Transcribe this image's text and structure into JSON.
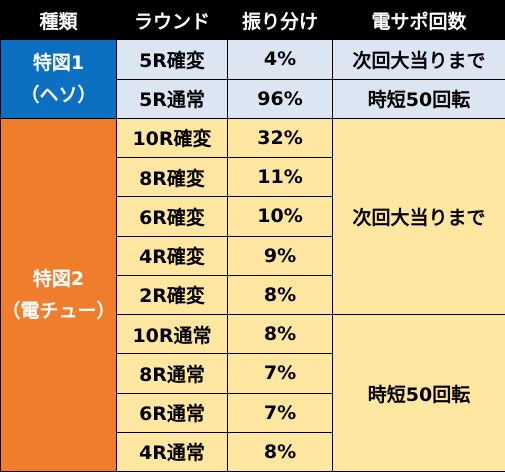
{
  "header": {
    "col1": "種類",
    "col2": "ラウンド",
    "col3": "振り分け",
    "col4": "電サポ回数"
  },
  "toku1": {
    "label_line1": "特図1",
    "label_line2": "（ヘソ）",
    "rows": [
      {
        "round": "5R確変",
        "ratio": "4%",
        "support": "次回大当りまで"
      },
      {
        "round": "5R通常",
        "ratio": "96%",
        "support": "時短50回転"
      }
    ]
  },
  "toku2": {
    "label_line1": "特図2",
    "label_line2": "（電チュー）",
    "support_kakuhen": "次回大当りまで",
    "support_tsujo": "時短50回転",
    "rows": [
      {
        "round": "10R確変",
        "ratio": "32%"
      },
      {
        "round": "8R確変",
        "ratio": "11%"
      },
      {
        "round": "6R確変",
        "ratio": "10%"
      },
      {
        "round": "4R確変",
        "ratio": "9%"
      },
      {
        "round": "2R確変",
        "ratio": "8%"
      },
      {
        "round": "10R通常",
        "ratio": "8%"
      },
      {
        "round": "8R通常",
        "ratio": "7%"
      },
      {
        "round": "6R通常",
        "ratio": "7%"
      },
      {
        "round": "4R通常",
        "ratio": "8%"
      }
    ]
  },
  "colors": {
    "header_bg": "#000000",
    "toku1_bg": "#0b6fc2",
    "toku2_bg": "#ef7d2c",
    "toku1_cell_bg": "#dce6f3",
    "toku2_cell_bg": "#ffe6a1"
  }
}
